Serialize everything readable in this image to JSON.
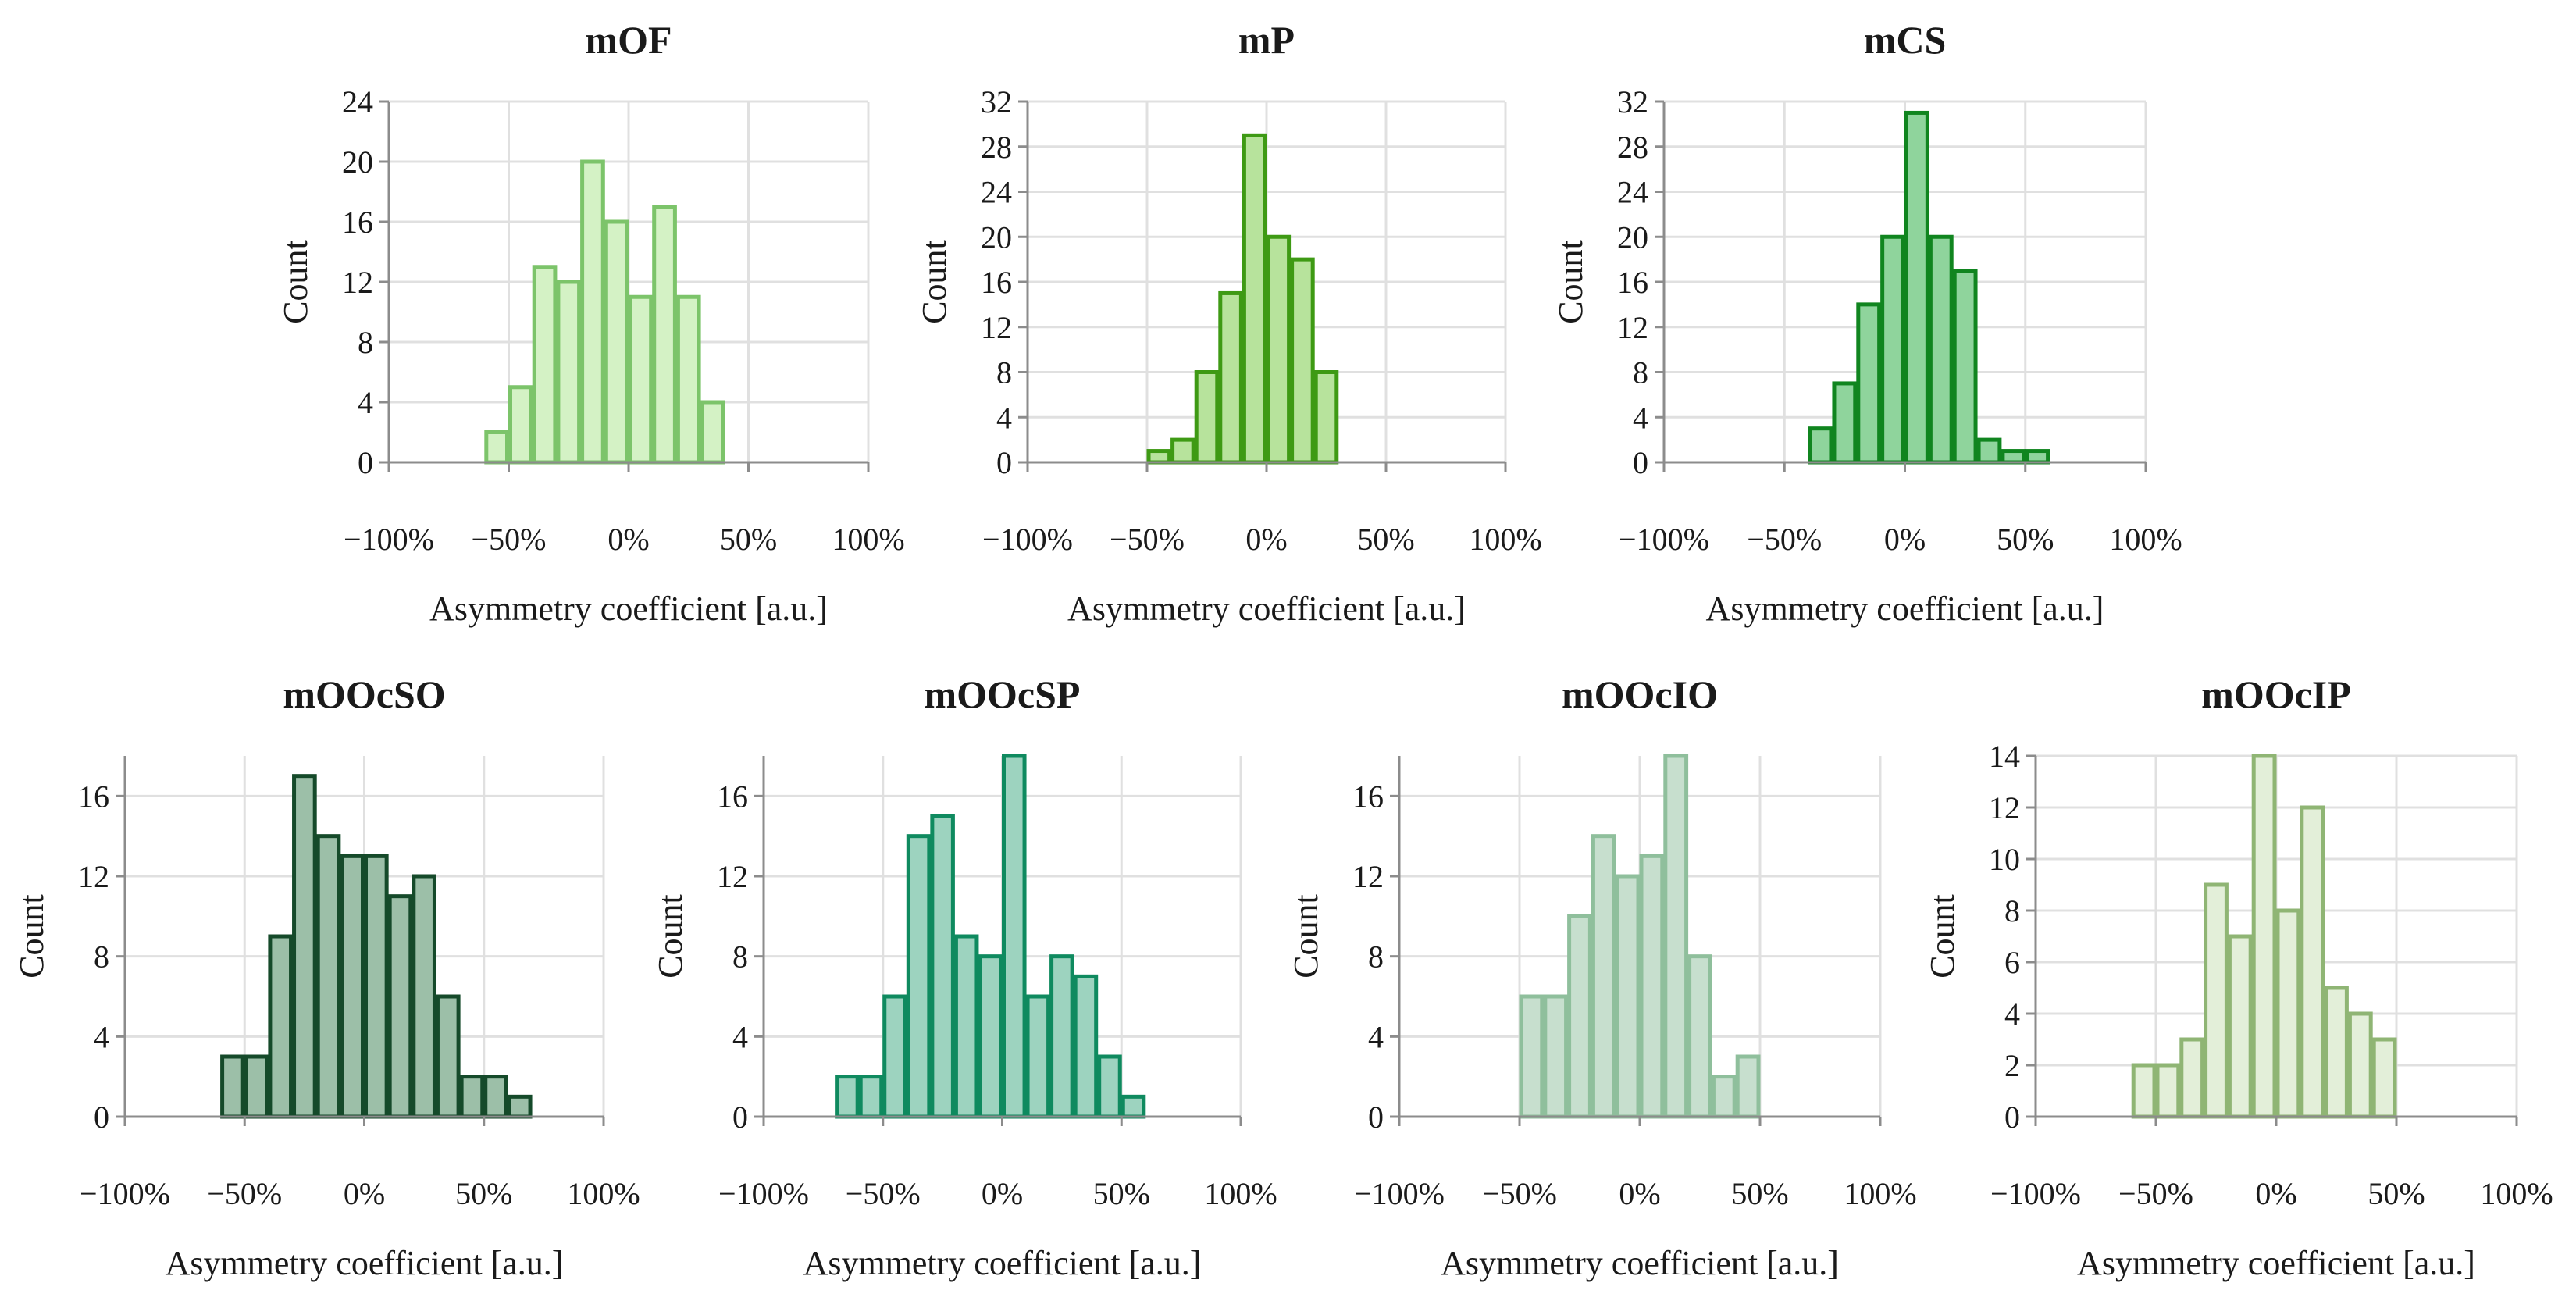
{
  "chart_data": [
    {
      "type": "bar",
      "title": "mOF",
      "xlabel": "Asymmetry coefficient [a.u.]",
      "ylabel": "Count",
      "xlim": [
        -1.0,
        1.0
      ],
      "ylim": [
        0,
        24
      ],
      "y_ticks": [
        0,
        4,
        8,
        12,
        16,
        20,
        24
      ],
      "x_ticks": [
        -1.0,
        -0.5,
        0,
        0.5,
        1.0
      ],
      "x_tick_labels": [
        "−100%",
        "−50%",
        "0%",
        "50%",
        "100%"
      ],
      "bin_width": 0.1,
      "bins": [
        {
          "x0": -0.6,
          "x1": -0.5,
          "count": 2
        },
        {
          "x0": -0.5,
          "x1": -0.4,
          "count": 5
        },
        {
          "x0": -0.4,
          "x1": -0.3,
          "count": 13
        },
        {
          "x0": -0.3,
          "x1": -0.2,
          "count": 12
        },
        {
          "x0": -0.2,
          "x1": -0.1,
          "count": 20
        },
        {
          "x0": -0.1,
          "x1": 0.0,
          "count": 16
        },
        {
          "x0": 0.0,
          "x1": 0.1,
          "count": 11
        },
        {
          "x0": 0.1,
          "x1": 0.2,
          "count": 17
        },
        {
          "x0": 0.2,
          "x1": 0.3,
          "count": 11
        },
        {
          "x0": 0.3,
          "x1": 0.4,
          "count": 4
        }
      ],
      "fill": "#d4f2c5",
      "stroke": "#7cc46a",
      "grid": true
    },
    {
      "type": "bar",
      "title": "mP",
      "xlabel": "Asymmetry coefficient [a.u.]",
      "ylabel": "Count",
      "xlim": [
        -1.0,
        1.0
      ],
      "ylim": [
        0,
        32
      ],
      "y_ticks": [
        0,
        4,
        8,
        12,
        16,
        20,
        24,
        28,
        32
      ],
      "x_ticks": [
        -1.0,
        -0.5,
        0,
        0.5,
        1.0
      ],
      "x_tick_labels": [
        "−100%",
        "−50%",
        "0%",
        "50%",
        "100%"
      ],
      "bin_width": 0.1,
      "bins": [
        {
          "x0": -0.5,
          "x1": -0.4,
          "count": 1
        },
        {
          "x0": -0.4,
          "x1": -0.3,
          "count": 2
        },
        {
          "x0": -0.3,
          "x1": -0.2,
          "count": 8
        },
        {
          "x0": -0.2,
          "x1": -0.1,
          "count": 15
        },
        {
          "x0": -0.1,
          "x1": 0.0,
          "count": 29
        },
        {
          "x0": 0.0,
          "x1": 0.1,
          "count": 20
        },
        {
          "x0": 0.1,
          "x1": 0.2,
          "count": 18
        },
        {
          "x0": 0.2,
          "x1": 0.3,
          "count": 8
        }
      ],
      "fill": "#b7e39c",
      "stroke": "#3e9a14",
      "grid": true
    },
    {
      "type": "bar",
      "title": "mCS",
      "xlabel": "Asymmetry coefficient [a.u.]",
      "ylabel": "Count",
      "xlim": [
        -1.0,
        1.0
      ],
      "ylim": [
        0,
        32
      ],
      "y_ticks": [
        0,
        4,
        8,
        12,
        16,
        20,
        24,
        28,
        32
      ],
      "x_ticks": [
        -1.0,
        -0.5,
        0,
        0.5,
        1.0
      ],
      "x_tick_labels": [
        "−100%",
        "−50%",
        "0%",
        "50%",
        "100%"
      ],
      "bin_width": 0.1,
      "bins": [
        {
          "x0": -0.4,
          "x1": -0.3,
          "count": 3
        },
        {
          "x0": -0.3,
          "x1": -0.2,
          "count": 7
        },
        {
          "x0": -0.2,
          "x1": -0.1,
          "count": 14
        },
        {
          "x0": -0.1,
          "x1": 0.0,
          "count": 20
        },
        {
          "x0": 0.0,
          "x1": 0.1,
          "count": 31
        },
        {
          "x0": 0.1,
          "x1": 0.2,
          "count": 20
        },
        {
          "x0": 0.2,
          "x1": 0.3,
          "count": 17
        },
        {
          "x0": 0.3,
          "x1": 0.4,
          "count": 2
        },
        {
          "x0": 0.4,
          "x1": 0.5,
          "count": 1
        },
        {
          "x0": 0.5,
          "x1": 0.6,
          "count": 1
        }
      ],
      "fill": "#8fd49c",
      "stroke": "#10851f",
      "grid": true
    },
    {
      "type": "bar",
      "title": "mOOcSO",
      "xlabel": "Asymmetry coefficient [a.u.]",
      "ylabel": "Count",
      "xlim": [
        -1.0,
        1.0
      ],
      "ylim": [
        0,
        18
      ],
      "y_ticks": [
        0,
        4,
        8,
        12,
        16
      ],
      "x_ticks": [
        -1.0,
        -0.5,
        0,
        0.5,
        1.0
      ],
      "x_tick_labels": [
        "−100%",
        "−50%",
        "0%",
        "50%",
        "100%"
      ],
      "bin_width": 0.1,
      "bins": [
        {
          "x0": -0.6,
          "x1": -0.5,
          "count": 3
        },
        {
          "x0": -0.5,
          "x1": -0.4,
          "count": 3
        },
        {
          "x0": -0.4,
          "x1": -0.3,
          "count": 9
        },
        {
          "x0": -0.3,
          "x1": -0.2,
          "count": 17
        },
        {
          "x0": -0.2,
          "x1": -0.1,
          "count": 14
        },
        {
          "x0": -0.1,
          "x1": 0.0,
          "count": 13
        },
        {
          "x0": 0.0,
          "x1": 0.1,
          "count": 13
        },
        {
          "x0": 0.1,
          "x1": 0.2,
          "count": 11
        },
        {
          "x0": 0.2,
          "x1": 0.3,
          "count": 12
        },
        {
          "x0": 0.3,
          "x1": 0.4,
          "count": 6
        },
        {
          "x0": 0.4,
          "x1": 0.5,
          "count": 2
        },
        {
          "x0": 0.5,
          "x1": 0.6,
          "count": 2
        },
        {
          "x0": 0.6,
          "x1": 0.7,
          "count": 1
        }
      ],
      "fill": "#9cbfa8",
      "stroke": "#154a2a",
      "grid": true
    },
    {
      "type": "bar",
      "title": "mOOcSP",
      "xlabel": "Asymmetry coefficient [a.u.]",
      "ylabel": "Count",
      "xlim": [
        -1.0,
        1.0
      ],
      "ylim": [
        0,
        18
      ],
      "y_ticks": [
        0,
        4,
        8,
        12,
        16
      ],
      "x_ticks": [
        -1.0,
        -0.5,
        0,
        0.5,
        1.0
      ],
      "x_tick_labels": [
        "−100%",
        "−50%",
        "0%",
        "50%",
        "100%"
      ],
      "bin_width": 0.1,
      "bins": [
        {
          "x0": -0.7,
          "x1": -0.6,
          "count": 2
        },
        {
          "x0": -0.6,
          "x1": -0.5,
          "count": 2
        },
        {
          "x0": -0.5,
          "x1": -0.4,
          "count": 6
        },
        {
          "x0": -0.4,
          "x1": -0.3,
          "count": 14
        },
        {
          "x0": -0.3,
          "x1": -0.2,
          "count": 15
        },
        {
          "x0": -0.2,
          "x1": -0.1,
          "count": 9
        },
        {
          "x0": -0.1,
          "x1": 0.0,
          "count": 8
        },
        {
          "x0": 0.0,
          "x1": 0.1,
          "count": 18
        },
        {
          "x0": 0.1,
          "x1": 0.2,
          "count": 6
        },
        {
          "x0": 0.2,
          "x1": 0.3,
          "count": 8
        },
        {
          "x0": 0.3,
          "x1": 0.4,
          "count": 7
        },
        {
          "x0": 0.4,
          "x1": 0.5,
          "count": 3
        },
        {
          "x0": 0.5,
          "x1": 0.6,
          "count": 1
        }
      ],
      "fill": "#9dd3bf",
      "stroke": "#0f8a5f",
      "grid": true
    },
    {
      "type": "bar",
      "title": "mOOcIO",
      "xlabel": "Asymmetry coefficient [a.u.]",
      "ylabel": "Count",
      "xlim": [
        -1.0,
        1.0
      ],
      "ylim": [
        0,
        18
      ],
      "y_ticks": [
        0,
        4,
        8,
        12,
        16
      ],
      "x_ticks": [
        -1.0,
        -0.5,
        0,
        0.5,
        1.0
      ],
      "x_tick_labels": [
        "−100%",
        "−50%",
        "0%",
        "50%",
        "100%"
      ],
      "bin_width": 0.1,
      "bins": [
        {
          "x0": -0.5,
          "x1": -0.4,
          "count": 6
        },
        {
          "x0": -0.4,
          "x1": -0.3,
          "count": 6
        },
        {
          "x0": -0.3,
          "x1": -0.2,
          "count": 10
        },
        {
          "x0": -0.2,
          "x1": -0.1,
          "count": 14
        },
        {
          "x0": -0.1,
          "x1": 0.0,
          "count": 12
        },
        {
          "x0": 0.0,
          "x1": 0.1,
          "count": 13
        },
        {
          "x0": 0.1,
          "x1": 0.2,
          "count": 18
        },
        {
          "x0": 0.2,
          "x1": 0.3,
          "count": 8
        },
        {
          "x0": 0.3,
          "x1": 0.4,
          "count": 2
        },
        {
          "x0": 0.4,
          "x1": 0.5,
          "count": 3
        }
      ],
      "fill": "#c7dfce",
      "stroke": "#8fbf9c",
      "grid": true
    },
    {
      "type": "bar",
      "title": "mOOcIP",
      "xlabel": "Asymmetry coefficient [a.u.]",
      "ylabel": "Count",
      "xlim": [
        -1.0,
        1.0
      ],
      "ylim": [
        0,
        14
      ],
      "y_ticks": [
        0,
        2,
        4,
        6,
        8,
        10,
        12,
        14
      ],
      "x_ticks": [
        -1.0,
        -0.5,
        0,
        0.5,
        1.0
      ],
      "x_tick_labels": [
        "−100%",
        "−50%",
        "0%",
        "50%",
        "100%"
      ],
      "bin_width": 0.1,
      "bins": [
        {
          "x0": -0.6,
          "x1": -0.5,
          "count": 2
        },
        {
          "x0": -0.5,
          "x1": -0.4,
          "count": 2
        },
        {
          "x0": -0.4,
          "x1": -0.3,
          "count": 3
        },
        {
          "x0": -0.3,
          "x1": -0.2,
          "count": 9
        },
        {
          "x0": -0.2,
          "x1": -0.1,
          "count": 7
        },
        {
          "x0": -0.1,
          "x1": 0.0,
          "count": 14
        },
        {
          "x0": 0.0,
          "x1": 0.1,
          "count": 8
        },
        {
          "x0": 0.1,
          "x1": 0.2,
          "count": 12
        },
        {
          "x0": 0.2,
          "x1": 0.3,
          "count": 5
        },
        {
          "x0": 0.3,
          "x1": 0.4,
          "count": 4
        },
        {
          "x0": 0.4,
          "x1": 0.5,
          "count": 3
        }
      ],
      "fill": "#e3efd9",
      "stroke": "#8fb574",
      "grid": true
    }
  ]
}
